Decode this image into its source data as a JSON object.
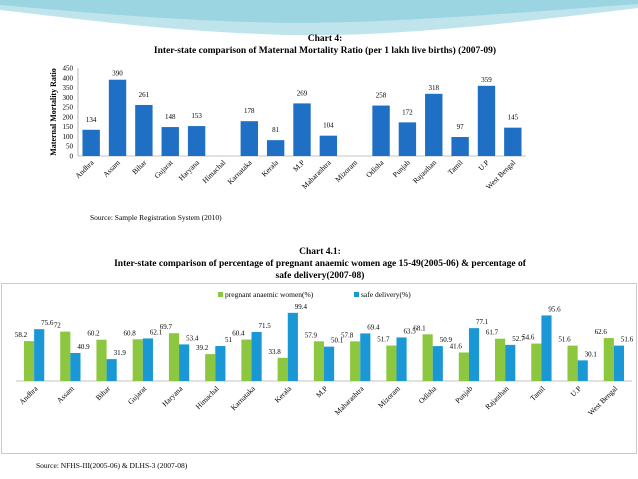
{
  "chart_data": [
    {
      "type": "bar",
      "title_line1": "Chart 4:",
      "title_line2": "Inter-state comparison of Maternal Mortality Ratio (per 1 lakh live births) (2007-09)",
      "ylabel": "Maternal Mortality Ratio",
      "xlabel": "",
      "ylim": [
        0,
        450
      ],
      "yticks": [
        0,
        50,
        100,
        150,
        200,
        250,
        300,
        350,
        400,
        450
      ],
      "categories": [
        "Andhra",
        "Assam",
        "Bihar",
        "Gujarat",
        "Haryana",
        "Himachal",
        "Karnataka",
        "Kerala",
        "M.P",
        "Maharashtra",
        "Mizoram",
        "Odisha",
        "Punjab",
        "Rajasthan",
        "Tamil",
        "U.P",
        "West Bengal"
      ],
      "values": [
        134,
        390,
        261,
        148,
        153,
        null,
        178,
        81,
        269,
        104,
        null,
        258,
        172,
        318,
        97,
        359,
        145
      ],
      "value_labels": [
        "134",
        "390",
        "261",
        "148",
        "153",
        "",
        "178",
        "81",
        "269",
        "104",
        "",
        "258",
        "172",
        "318",
        "97",
        "359",
        "145"
      ],
      "color": "#1f6fc5",
      "grid": false,
      "source": "Source: Sample Registration System (2010)"
    },
    {
      "type": "bar",
      "title_line1": "Chart 4.1:",
      "title_line2": "Inter-state comparison of percentage of pregnant anaemic women age 15-49(2005-06) & percentage of",
      "title_line3": "safe delivery(2007-08)",
      "xlabel": "",
      "ylabel": "",
      "ylim": [
        0,
        105
      ],
      "legend": "top-center",
      "categories": [
        "Andhra",
        "Assam",
        "Bihar",
        "Gujarat",
        "Haryana",
        "Himachal",
        "Karnataka",
        "Kerala",
        "M.P",
        "Maharashtra",
        "Mizoram",
        "Odisha",
        "Punjab",
        "Rajasthan",
        "Tamil",
        "U.P",
        "West Bengal"
      ],
      "series": [
        {
          "name": "pregnant anaemic women(%)",
          "color": "#8dc63f",
          "values": [
            58.2,
            72,
            60.2,
            60.8,
            69.7,
            39.2,
            60.4,
            33.8,
            57.9,
            57.8,
            51.7,
            68.1,
            41.6,
            61.7,
            54.6,
            51.6,
            62.6
          ],
          "labels": [
            "58.2",
            "72",
            "60.2",
            "60.8",
            "69.7",
            "39.2",
            "60.4",
            "33.8",
            "57.9",
            "57.8",
            "51.7",
            "68.1",
            "41.6",
            "61.7",
            "54.6",
            "51.6",
            "62.6"
          ]
        },
        {
          "name": "safe delivery(%)",
          "color": "#1a98d5",
          "values": [
            75.6,
            40.9,
            31.9,
            62.1,
            53.4,
            51,
            71.5,
            99.4,
            50.1,
            69.4,
            63.5,
            50.9,
            77.1,
            52.7,
            95.6,
            30.1,
            51.6
          ],
          "labels": [
            "75.6",
            "40.9",
            "31.9",
            "62.1",
            "53.4",
            "51",
            "71.5",
            "99.4",
            "50.1",
            "69.4",
            "63.5",
            "50.9",
            "77.1",
            "52.7",
            "95.6",
            "30.1",
            "51.6"
          ]
        }
      ],
      "source": "Source: NFHS-III(2005-06) & DLHS-3 (2007-08)"
    }
  ]
}
